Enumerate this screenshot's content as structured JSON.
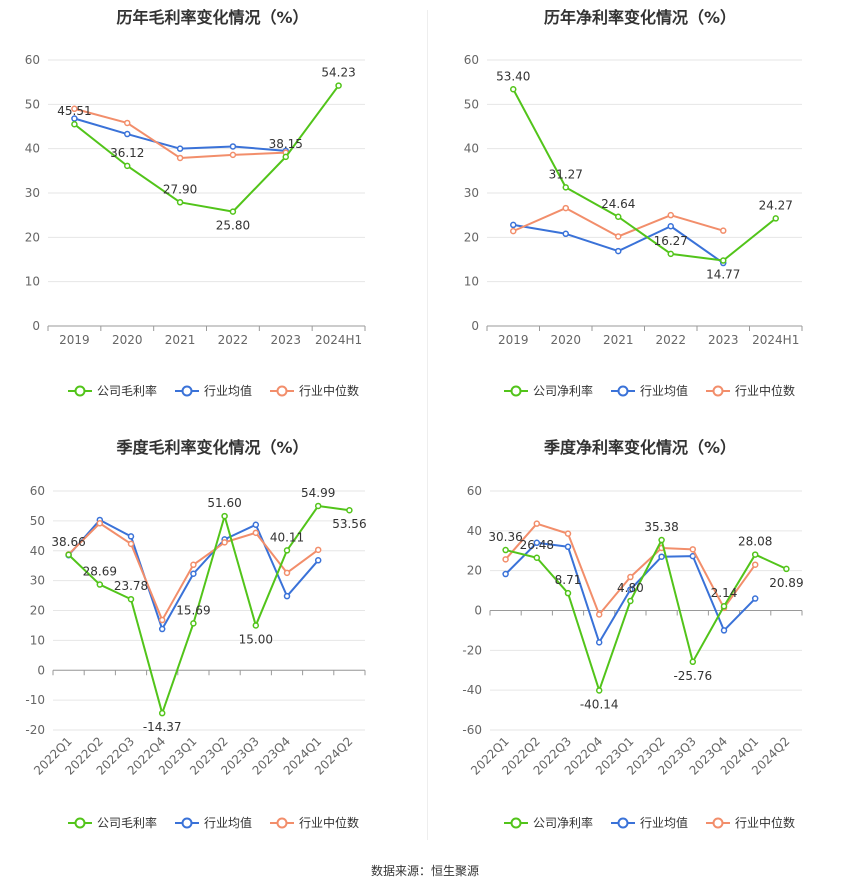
{
  "source": "数据来源：恒生聚源",
  "colors": {
    "company": "#52c41a",
    "industry_avg": "#3a72d8",
    "industry_median": "#f28e6b"
  },
  "chart_data": [
    {
      "type": "line",
      "title": "历年毛利率变化情况（%）",
      "categories": [
        "2019",
        "2020",
        "2021",
        "2022",
        "2023",
        "2024H1"
      ],
      "ylim": [
        0,
        60
      ],
      "yticks": [
        0,
        10,
        20,
        30,
        40,
        50,
        60
      ],
      "rotate_x_labels": false,
      "legend": [
        "公司毛利率",
        "行业均值",
        "行业中位数"
      ],
      "series": [
        {
          "name": "公司毛利率",
          "values": [
            45.51,
            36.12,
            27.9,
            25.8,
            38.15,
            54.23
          ],
          "labels": [
            "45.51",
            "36.12",
            "27.90",
            "25.80",
            "38.15",
            "54.23"
          ]
        },
        {
          "name": "行业均值",
          "values": [
            46.8,
            43.3,
            40.0,
            40.5,
            39.5,
            null
          ]
        },
        {
          "name": "行业中位数",
          "values": [
            49.0,
            45.8,
            37.9,
            38.6,
            39.1,
            null
          ]
        }
      ]
    },
    {
      "type": "line",
      "title": "历年净利率变化情况（%）",
      "categories": [
        "2019",
        "2020",
        "2021",
        "2022",
        "2023",
        "2024H1"
      ],
      "ylim": [
        0,
        60
      ],
      "yticks": [
        0,
        10,
        20,
        30,
        40,
        50,
        60
      ],
      "rotate_x_labels": false,
      "legend": [
        "公司净利率",
        "行业均值",
        "行业中位数"
      ],
      "series": [
        {
          "name": "公司净利率",
          "values": [
            53.4,
            31.27,
            24.64,
            16.27,
            14.77,
            24.27
          ],
          "labels": [
            "53.40",
            "31.27",
            "24.64",
            "16.27",
            "14.77",
            "24.27"
          ]
        },
        {
          "name": "行业均值",
          "values": [
            22.8,
            20.8,
            16.9,
            22.5,
            14.2,
            null
          ]
        },
        {
          "name": "行业中位数",
          "values": [
            21.4,
            26.6,
            20.2,
            25.0,
            21.5,
            null
          ]
        }
      ]
    },
    {
      "type": "line",
      "title": "季度毛利率变化情况（%）",
      "categories": [
        "2022Q1",
        "2022Q2",
        "2022Q3",
        "2022Q4",
        "2023Q1",
        "2023Q2",
        "2023Q3",
        "2023Q4",
        "2024Q1",
        "2024Q2"
      ],
      "ylim": [
        -20,
        60
      ],
      "yticks": [
        -20,
        -10,
        0,
        10,
        20,
        30,
        40,
        50,
        60
      ],
      "rotate_x_labels": true,
      "legend": [
        "公司毛利率",
        "行业均值",
        "行业中位数"
      ],
      "series": [
        {
          "name": "公司毛利率",
          "values": [
            38.66,
            28.69,
            23.78,
            -14.37,
            15.69,
            51.6,
            15.0,
            40.11,
            54.99,
            53.56
          ],
          "labels": [
            "38.66",
            "28.69",
            "23.78",
            "-14.37",
            "15.69",
            "51.60",
            "15.00",
            "40.11",
            "54.99",
            "53.56"
          ]
        },
        {
          "name": "行业均值",
          "values": [
            38.5,
            50.3,
            44.8,
            13.8,
            32.3,
            43.8,
            48.7,
            24.8,
            36.8,
            null
          ]
        },
        {
          "name": "行业中位数",
          "values": [
            38.8,
            49.2,
            42.3,
            16.8,
            35.3,
            42.8,
            46.0,
            32.6,
            40.3,
            null
          ]
        }
      ]
    },
    {
      "type": "line",
      "title": "季度净利率变化情况（%）",
      "categories": [
        "2022Q1",
        "2022Q2",
        "2022Q3",
        "2022Q4",
        "2023Q1",
        "2023Q2",
        "2023Q3",
        "2023Q4",
        "2024Q1",
        "2024Q2"
      ],
      "ylim": [
        -60,
        60
      ],
      "yticks": [
        -60,
        -40,
        -20,
        0,
        20,
        40,
        60
      ],
      "rotate_x_labels": true,
      "legend": [
        "公司净利率",
        "行业均值",
        "行业中位数"
      ],
      "series": [
        {
          "name": "公司净利率",
          "values": [
            30.36,
            26.48,
            8.71,
            -40.14,
            4.8,
            35.38,
            -25.76,
            2.14,
            28.08,
            20.89
          ],
          "labels": [
            "30.36",
            "26.48",
            "8.71",
            "-40.14",
            "4.80",
            "35.38",
            "-25.76",
            "2.14",
            "28.08",
            "20.89"
          ]
        },
        {
          "name": "行业均值",
          "values": [
            18.3,
            34.0,
            32.0,
            -16.0,
            10.5,
            27.0,
            27.3,
            -10.0,
            6.0,
            null
          ]
        },
        {
          "name": "行业中位数",
          "values": [
            25.7,
            43.6,
            38.6,
            -2.0,
            16.8,
            31.4,
            30.7,
            1.3,
            23.0,
            null
          ]
        }
      ]
    }
  ]
}
